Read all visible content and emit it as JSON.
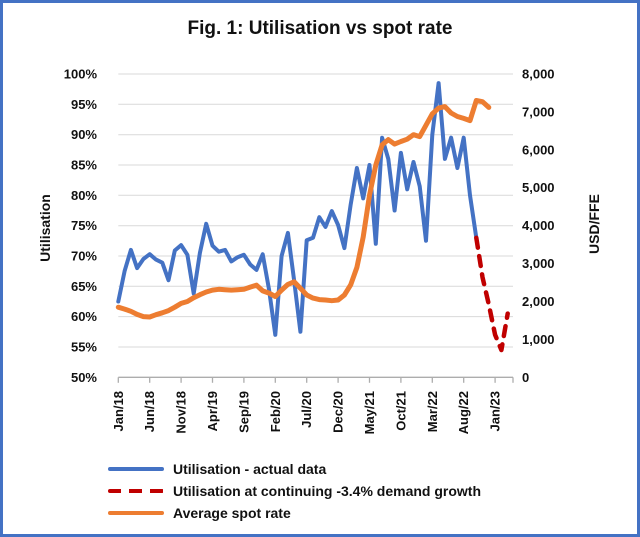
{
  "colors": {
    "border": "#4472C4",
    "utilisation_actual": "#4472C4",
    "utilisation_forecast": "#C00000",
    "spot_rate": "#ED7D31",
    "gridline": "#D9D9D9",
    "axis": "#ADADAD",
    "text": "#111111"
  },
  "chart_data": {
    "type": "line",
    "title": "Fig. 1: Utilisation vs spot rate",
    "x_axis": {
      "unit": "month",
      "tick_labels": [
        "Jan/18",
        "Jun/18",
        "Nov/18",
        "Apr/19",
        "Sep/19",
        "Feb/20",
        "Jul/20",
        "Dec/20",
        "May/21",
        "Oct/21",
        "Mar/22",
        "Aug/22",
        "Jan/23"
      ],
      "months_per_tick": 5
    },
    "y_left": {
      "label": "Utilisation",
      "min": 50,
      "max": 100,
      "tick_step": 5,
      "tick_labels": [
        "100%",
        "95%",
        "90%",
        "85%",
        "80%",
        "75%",
        "70%",
        "65%",
        "60%",
        "55%",
        "50%"
      ]
    },
    "y_right": {
      "label": "USD/FFE",
      "min": 0,
      "max": 8000,
      "tick_step": 1000,
      "tick_labels": [
        "8,000",
        "7,000",
        "6,000",
        "5,000",
        "4,000",
        "3,000",
        "2,000",
        "1,000",
        "0"
      ]
    },
    "grid": "horizontal",
    "legend_position": "bottom-left",
    "series": [
      {
        "id": "utilisation-actual",
        "name": "Utilisation - actual data",
        "axis": "left",
        "color": "#4472C4",
        "style": "solid",
        "width": 4,
        "start_index": 0,
        "values": [
          62.5,
          67.5,
          71.0,
          68.0,
          69.5,
          70.3,
          69.4,
          68.9,
          66.0,
          70.9,
          71.8,
          70.2,
          63.8,
          70.5,
          75.3,
          71.7,
          70.7,
          71.0,
          69.1,
          69.8,
          70.2,
          68.6,
          67.7,
          70.3,
          64.5,
          57.0,
          70.0,
          73.8,
          66.0,
          57.5,
          72.6,
          73.0,
          76.4,
          74.8,
          77.4,
          75.1,
          71.3,
          78.5,
          84.5,
          79.5,
          85.0,
          72.0,
          89.5,
          86.0,
          77.5,
          87.0,
          81.0,
          85.5,
          81.5,
          72.5,
          90.0,
          98.5,
          86.0,
          89.5,
          84.5,
          89.5,
          80.0,
          73.0
        ]
      },
      {
        "id": "utilisation-forecast",
        "name": "Utilisation at continuing -3.4% demand growth",
        "axis": "left",
        "color": "#C00000",
        "style": "dashed",
        "width": 4.5,
        "start_index": 57,
        "values": [
          73.0,
          66.5,
          62.0,
          57.0,
          54.5,
          60.5
        ]
      },
      {
        "id": "spot-rate",
        "name": "Average spot rate",
        "axis": "right",
        "color": "#ED7D31",
        "style": "solid",
        "width": 5,
        "start_index": 0,
        "values": [
          1850,
          1800,
          1740,
          1660,
          1600,
          1590,
          1650,
          1700,
          1760,
          1850,
          1950,
          2000,
          2100,
          2180,
          2250,
          2300,
          2320,
          2310,
          2300,
          2310,
          2320,
          2380,
          2430,
          2280,
          2220,
          2130,
          2300,
          2450,
          2520,
          2350,
          2170,
          2090,
          2050,
          2040,
          2020,
          2040,
          2170,
          2440,
          2900,
          3700,
          4800,
          5600,
          6130,
          6270,
          6150,
          6220,
          6280,
          6400,
          6350,
          6650,
          6950,
          7100,
          7140,
          6970,
          6880,
          6830,
          6770,
          7300,
          7270,
          7120
        ]
      }
    ]
  }
}
